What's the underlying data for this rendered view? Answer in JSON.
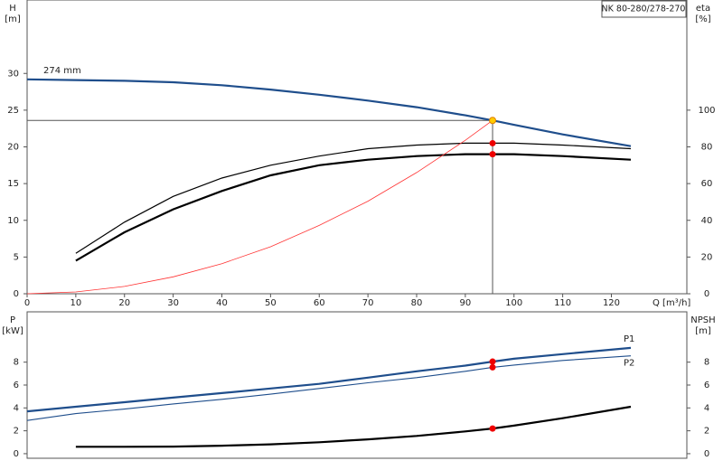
{
  "chart_data": [
    {
      "type": "line",
      "title": "NK 80-280/278-270",
      "ylabel": "H",
      "yunit": "[m]",
      "y2label": "eta",
      "y2unit": "[%]",
      "xlabel": "Q [m³/h]",
      "annotation": "274 mm",
      "xlim": [
        0,
        135.5
      ],
      "xticks": [
        0,
        10,
        20,
        30,
        40,
        50,
        60,
        70,
        80,
        90,
        100,
        110,
        120
      ],
      "ylim": [
        0,
        40
      ],
      "yticks": [
        0,
        5,
        10,
        15,
        20,
        25,
        30
      ],
      "y2lim": [
        0,
        160
      ],
      "y2ticks": [
        0,
        20,
        40,
        60,
        80,
        100
      ],
      "duty_lines": true,
      "series": [
        {
          "color": "#1f4e8c",
          "width": 2.2,
          "axis": "y",
          "x": [
            0,
            10,
            20,
            30,
            40,
            50,
            60,
            70,
            80,
            90,
            95.6,
            100,
            110,
            124
          ],
          "values": [
            29.2,
            29.1,
            29.0,
            28.8,
            28.4,
            27.8,
            27.1,
            26.3,
            25.4,
            24.3,
            23.6,
            23.0,
            21.7,
            20.1
          ]
        },
        {
          "color": "#000000",
          "width": 1.2,
          "axis": "y2",
          "x": [
            10,
            20,
            30,
            40,
            50,
            60,
            70,
            80,
            90,
            100,
            110,
            124
          ],
          "values": [
            22,
            39,
            53,
            63,
            70,
            75,
            79,
            81,
            82,
            82,
            81,
            79
          ]
        },
        {
          "color": "#000000",
          "width": 2.2,
          "axis": "y2",
          "x": [
            10,
            20,
            30,
            40,
            50,
            60,
            70,
            80,
            90,
            100,
            110,
            124
          ],
          "values": [
            18,
            33.5,
            46,
            56,
            64.5,
            70,
            73,
            75,
            76,
            76,
            75,
            73
          ]
        },
        {
          "color": "#ff3333",
          "width": 0.8,
          "axis": "y",
          "x": [
            0,
            10,
            20,
            30,
            40,
            50,
            60,
            70,
            80,
            90,
            95.6
          ],
          "values": [
            0,
            0.25,
            1.0,
            2.3,
            4.1,
            6.4,
            9.3,
            12.6,
            16.5,
            20.9,
            23.6
          ]
        }
      ],
      "markers": [
        {
          "x": 95.6,
          "y": 23.6,
          "color": "#ffcc00",
          "axis": "y"
        },
        {
          "x": 95.6,
          "y": 82,
          "color": "#ee0000",
          "axis": "y2"
        },
        {
          "x": 95.6,
          "y": 76,
          "color": "#ee0000",
          "axis": "y2"
        }
      ]
    },
    {
      "type": "line",
      "ylabel": "P",
      "yunit": "[kW]",
      "y2label": "NPSH",
      "y2unit": "[m]",
      "xlim": [
        0,
        135.5
      ],
      "ylim": [
        -0.4,
        12.4
      ],
      "yticks": [
        0,
        2,
        4,
        6,
        8
      ],
      "y2lim": [
        -0.4,
        12.4
      ],
      "y2ticks": [
        0,
        2,
        4,
        6,
        8
      ],
      "series": [
        {
          "name": "P1",
          "color": "#1f4e8c",
          "width": 2.2,
          "axis": "y",
          "x": [
            0,
            10,
            20,
            30,
            40,
            50,
            60,
            70,
            80,
            90,
            95.6,
            100,
            110,
            124
          ],
          "values": [
            3.7,
            4.1,
            4.5,
            4.9,
            5.3,
            5.7,
            6.1,
            6.65,
            7.2,
            7.7,
            8.05,
            8.3,
            8.7,
            9.25
          ]
        },
        {
          "name": "P2",
          "color": "#1f4e8c",
          "width": 1.1,
          "axis": "y",
          "x": [
            0,
            10,
            20,
            30,
            40,
            50,
            60,
            70,
            80,
            90,
            95.6,
            100,
            110,
            124
          ],
          "values": [
            2.9,
            3.5,
            3.9,
            4.35,
            4.75,
            5.2,
            5.7,
            6.2,
            6.65,
            7.2,
            7.55,
            7.75,
            8.15,
            8.55
          ]
        },
        {
          "color": "#000000",
          "width": 2.2,
          "axis": "y2",
          "x": [
            10,
            20,
            30,
            40,
            50,
            60,
            70,
            80,
            90,
            95.6,
            100,
            110,
            124
          ],
          "values": [
            0.6,
            0.6,
            0.62,
            0.7,
            0.82,
            1.0,
            1.25,
            1.55,
            1.95,
            2.2,
            2.45,
            3.1,
            4.1
          ]
        }
      ],
      "markers": [
        {
          "x": 95.6,
          "y": 8.05,
          "color": "#ee0000",
          "axis": "y"
        },
        {
          "x": 95.6,
          "y": 7.55,
          "color": "#ee0000",
          "axis": "y"
        },
        {
          "x": 95.6,
          "y": 2.2,
          "color": "#ee0000",
          "axis": "y2"
        }
      ]
    }
  ]
}
